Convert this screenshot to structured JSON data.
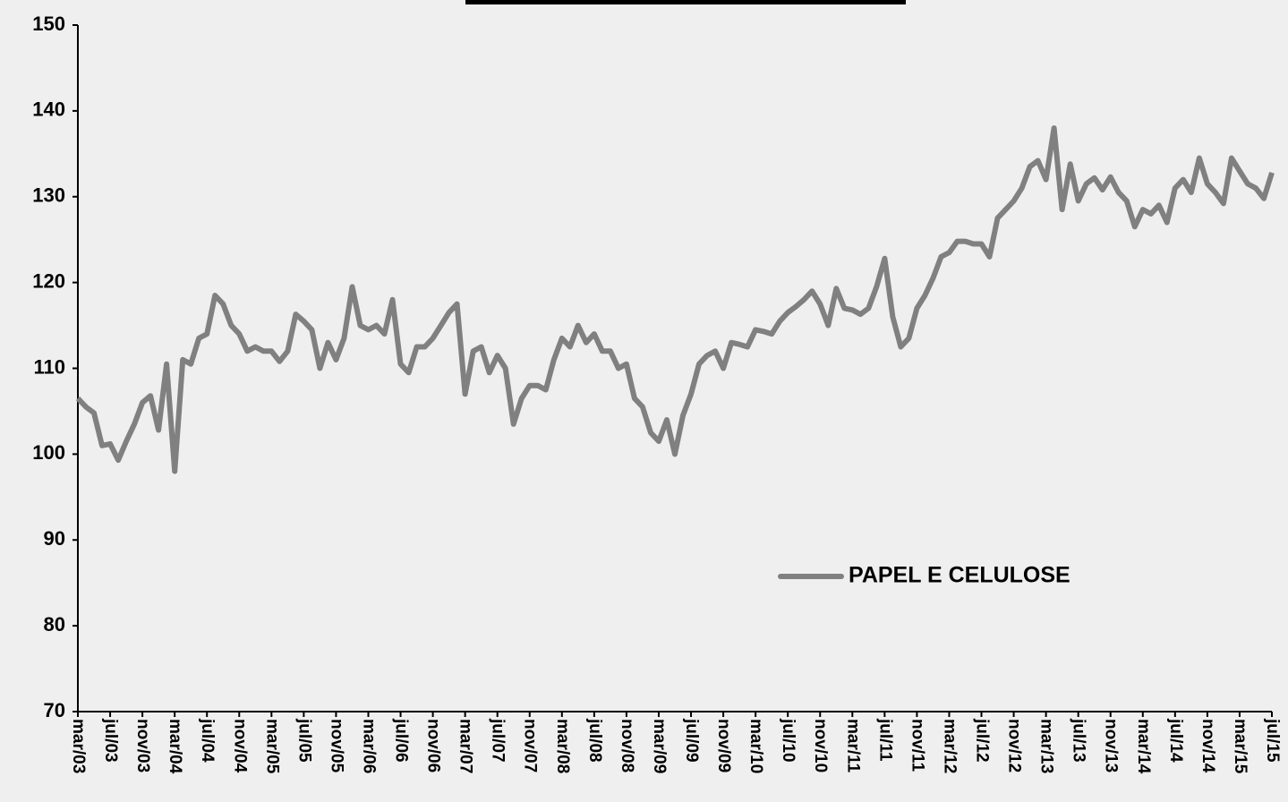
{
  "chart_data": {
    "type": "line",
    "categories": [
      "mar/03",
      null,
      null,
      null,
      "jul/03",
      null,
      null,
      null,
      "nov/03",
      null,
      null,
      null,
      "mar/04",
      null,
      null,
      null,
      "jul/04",
      null,
      null,
      null,
      "nov/04",
      null,
      null,
      null,
      "mar/05",
      null,
      null,
      null,
      "jul/05",
      null,
      null,
      null,
      "nov/05",
      null,
      null,
      null,
      "mar/06",
      null,
      null,
      null,
      "jul/06",
      null,
      null,
      null,
      "nov/06",
      null,
      null,
      null,
      "mar/07",
      null,
      null,
      null,
      "jul/07",
      null,
      null,
      null,
      "nov/07",
      null,
      null,
      null,
      "mar/08",
      null,
      null,
      null,
      "jul/08",
      null,
      null,
      null,
      "nov/08",
      null,
      null,
      null,
      "mar/09",
      null,
      null,
      null,
      "jul/09",
      null,
      null,
      null,
      "nov/09",
      null,
      null,
      null,
      "mar/10",
      null,
      null,
      null,
      "jul/10",
      null,
      null,
      null,
      "nov/10",
      null,
      null,
      null,
      "mar/11",
      null,
      null,
      null,
      "jul/11",
      null,
      null,
      null,
      "nov/11",
      null,
      null,
      null,
      "mar/12",
      null,
      null,
      null,
      "jul/12",
      null,
      null,
      null,
      "nov/12",
      null,
      null,
      null,
      "mar/13",
      null,
      null,
      null,
      "jul/13",
      null,
      null,
      null,
      "nov/13",
      null,
      null,
      null,
      "mar/14",
      null,
      null,
      null,
      "jul/14",
      null,
      null,
      null,
      "nov/14",
      null,
      null,
      null,
      "mar/15",
      null,
      null,
      null,
      "jul/15"
    ],
    "series": [
      {
        "name": "PAPEL E CELULOSE",
        "color": "#808080",
        "values": [
          106.5,
          105.5,
          104.8,
          101,
          101.2,
          99.3,
          101.5,
          103.5,
          106,
          106.8,
          102.8,
          110.5,
          98,
          111,
          110.5,
          113.5,
          114,
          118.5,
          117.5,
          115,
          114,
          112,
          112.5,
          112,
          112,
          110.8,
          112,
          116.3,
          115.5,
          114.5,
          110,
          113,
          111,
          113.5,
          119.5,
          115,
          114.5,
          115,
          114,
          118,
          110.5,
          109.5,
          112.5,
          112.5,
          113.5,
          115,
          116.5,
          117.5,
          107,
          112,
          112.5,
          109.5,
          111.5,
          110,
          103.5,
          106.5,
          108,
          108,
          107.5,
          111,
          113.5,
          112.5,
          115,
          113,
          114,
          112,
          112,
          110,
          110.5,
          106.5,
          105.5,
          102.5,
          101.5,
          104,
          100,
          104.5,
          107,
          110.5,
          111.5,
          112,
          110,
          113,
          112.8,
          112.5,
          114.5,
          114.3,
          114,
          115.5,
          116.5,
          117.2,
          118,
          119,
          117.5,
          115,
          119.3,
          117,
          116.8,
          116.3,
          117,
          119.5,
          122.8,
          116,
          112.5,
          113.5,
          117,
          118.5,
          120.5,
          123,
          123.5,
          124.8,
          124.8,
          124.5,
          124.5,
          123,
          127.5,
          128.5,
          129.5,
          131,
          133.5,
          134.2,
          132,
          138,
          128.5,
          133.8,
          129.5,
          131.5,
          132.2,
          130.8,
          132.3,
          130.5,
          129.5,
          126.5,
          128.5,
          128,
          129,
          127,
          131,
          132,
          130.5,
          134.5,
          131.5,
          130.5,
          129.2,
          134.5,
          133,
          131.5,
          131,
          129.8,
          132.8
        ]
      }
    ],
    "ylim": [
      70,
      150
    ],
    "yticks": [
      70,
      80,
      90,
      100,
      110,
      120,
      130,
      140,
      150
    ],
    "grid": false,
    "legend": "lower right"
  }
}
